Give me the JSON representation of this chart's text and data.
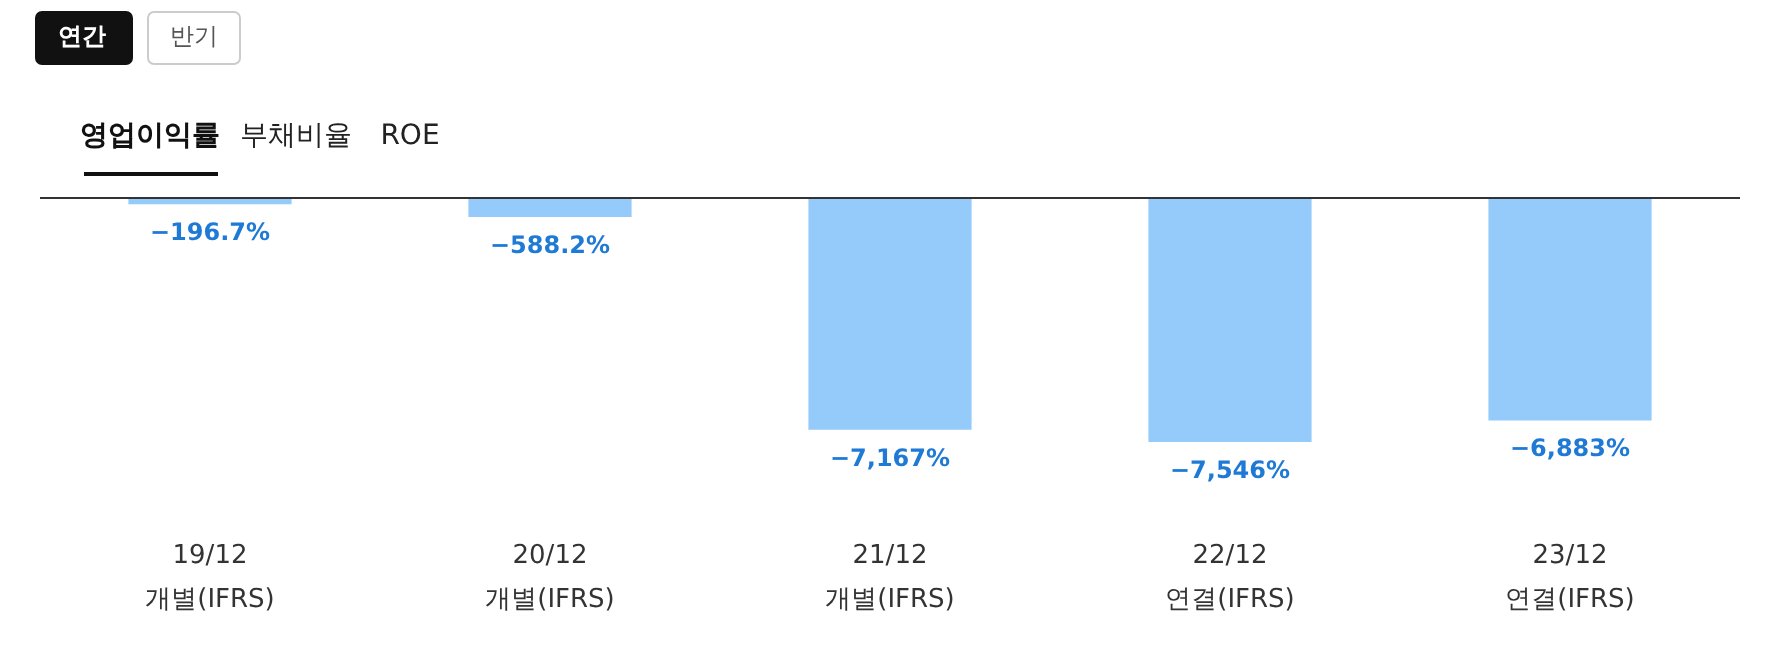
{
  "chart_data": {
    "type": "bar",
    "categories": [
      "19/12\n개별(IFRS)",
      "20/12\n개별(IFRS)",
      "21/12\n개별(IFRS)",
      "22/12\n연결(IFRS)",
      "23/12\n연결(IFRS)"
    ],
    "values": [
      -196.7,
      -588.2,
      -7167,
      -7546,
      -6883
    ],
    "value_labels": [
      "−196.7%",
      "−588.2%",
      "−7,167%",
      "−7,546%",
      "−6,883%"
    ],
    "color": "#94cbfb",
    "annotations": [
      "연간",
      "반기",
      "영업이익률",
      "부채비율",
      "ROE"
    ],
    "grid": false
  }
}
